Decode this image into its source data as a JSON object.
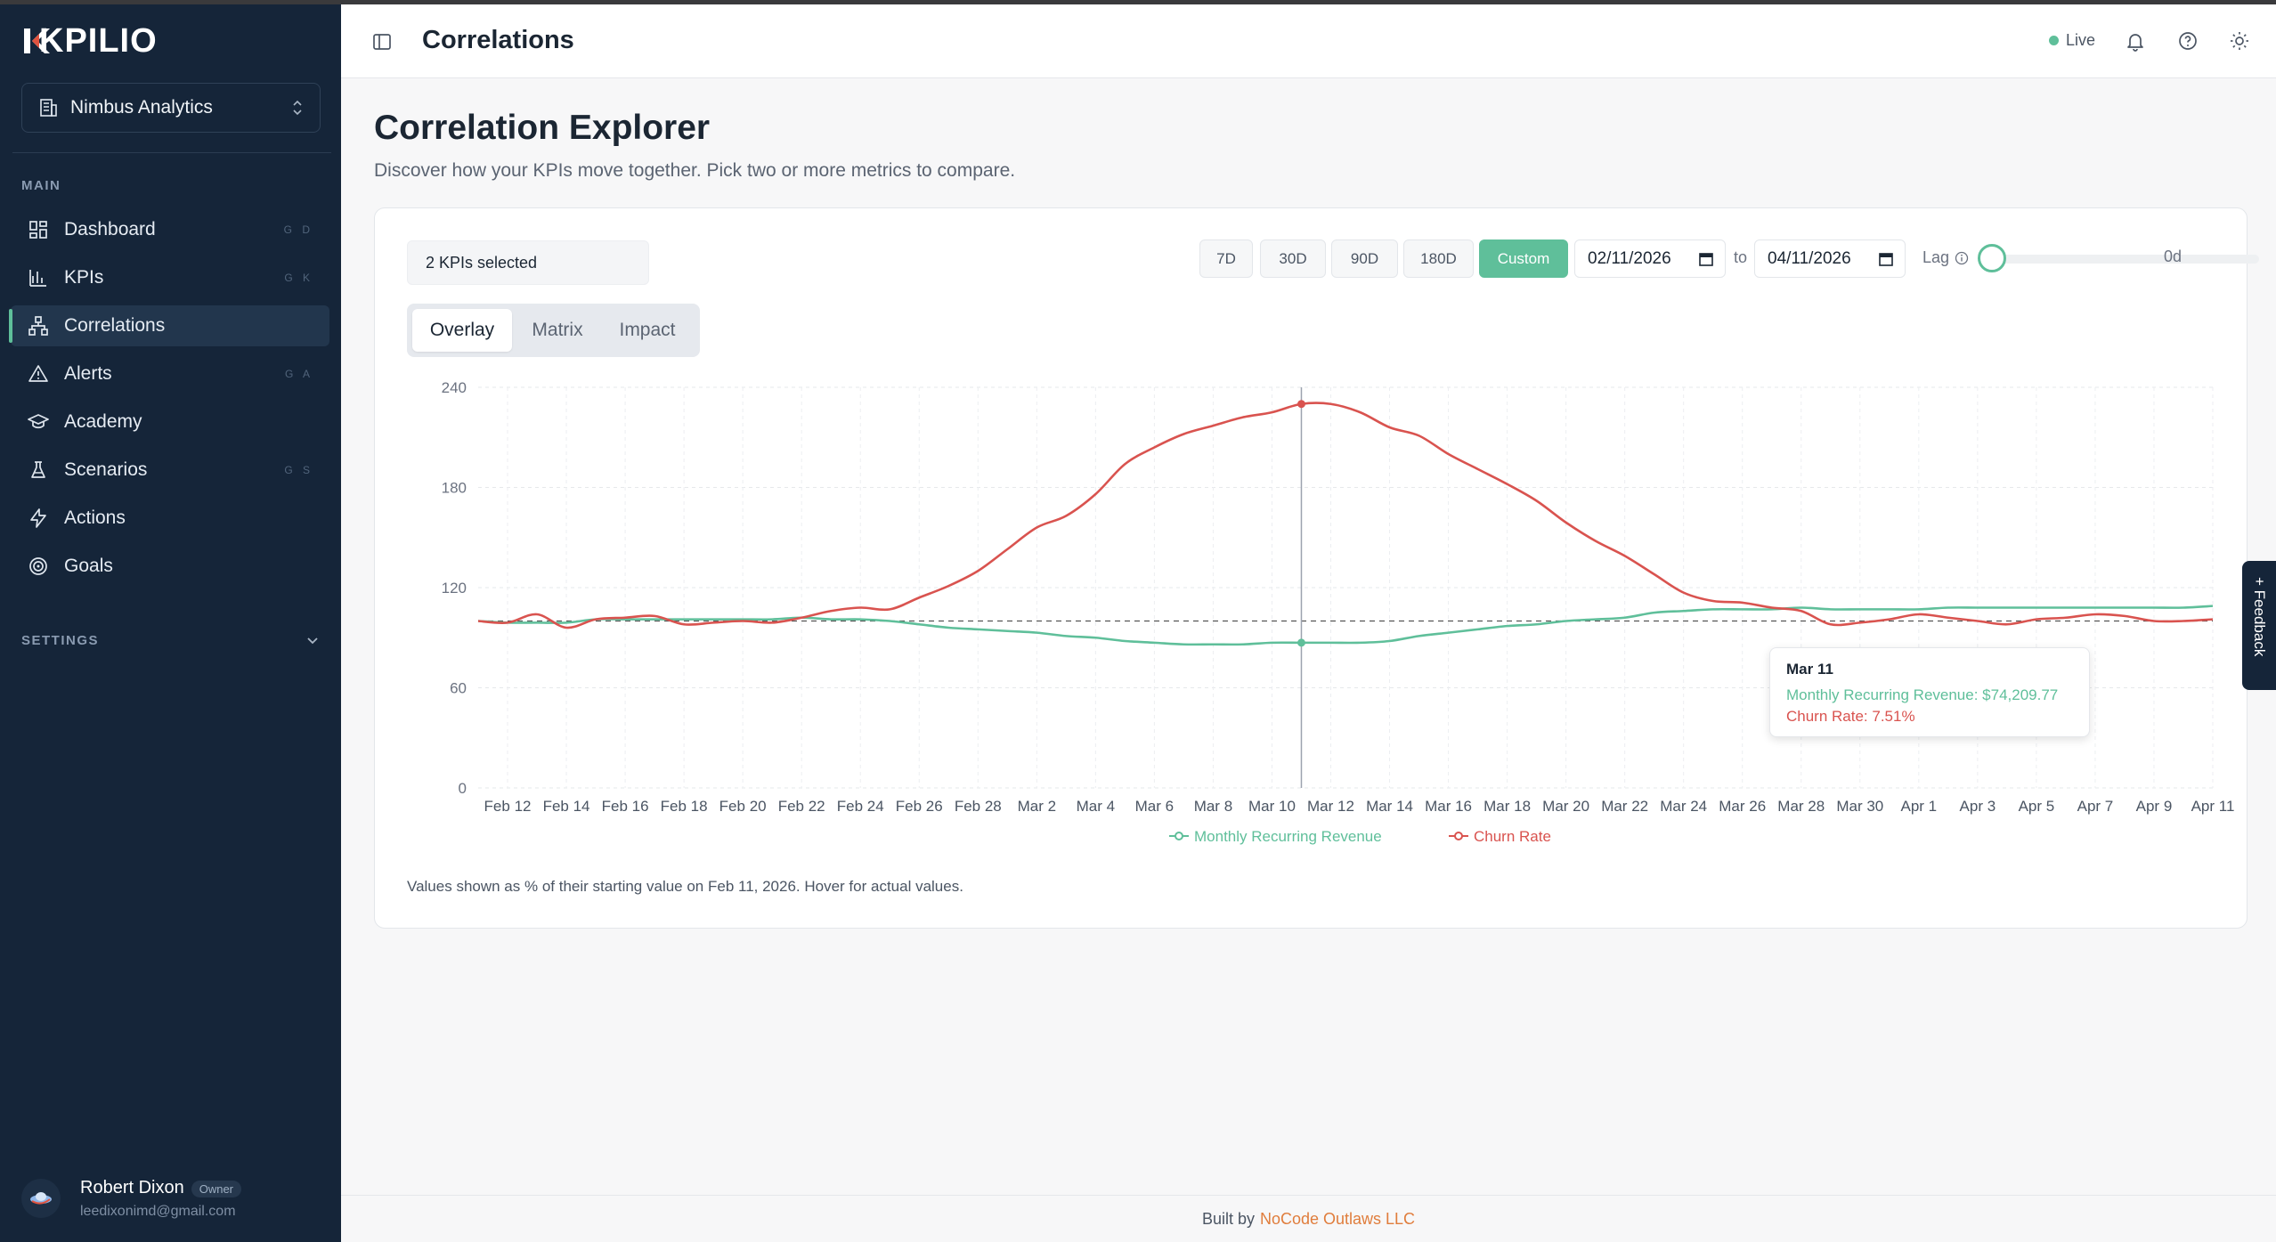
{
  "app": {
    "logo_text": "KPILIO",
    "org_name": "Nimbus Analytics"
  },
  "sidebar": {
    "main_label": "MAIN",
    "items": [
      {
        "label": "Dashboard",
        "kbd": "G D"
      },
      {
        "label": "KPIs",
        "kbd": "G K"
      },
      {
        "label": "Correlations",
        "kbd": ""
      },
      {
        "label": "Alerts",
        "kbd": "G A"
      },
      {
        "label": "Academy",
        "kbd": ""
      },
      {
        "label": "Scenarios",
        "kbd": "G S"
      },
      {
        "label": "Actions",
        "kbd": ""
      },
      {
        "label": "Goals",
        "kbd": ""
      }
    ],
    "settings_label": "SETTINGS",
    "user": {
      "name": "Robert Dixon",
      "role": "Owner",
      "email": "leedixonimd@gmail.com"
    }
  },
  "header": {
    "title": "Correlations",
    "live_label": "Live"
  },
  "main": {
    "title": "Correlation Explorer",
    "subtitle": "Discover how your KPIs move together. Pick two or more metrics to compare.",
    "kpi_select": "2 KPIs selected",
    "ranges": [
      "7D",
      "30D",
      "90D",
      "180D",
      "Custom"
    ],
    "active_range": "Custom",
    "date_from": "02/11/2026",
    "to_label": "to",
    "date_to": "04/11/2026",
    "lag_label": "Lag",
    "lag_value": "0d",
    "tabs": [
      "Overlay",
      "Matrix",
      "Impact"
    ],
    "active_tab": "Overlay",
    "note": "Values shown as % of their starting value on Feb 11, 2026. Hover for actual values."
  },
  "tooltip": {
    "date": "Mar 11",
    "mrr_line": "Monthly Recurring Revenue: $74,209.77",
    "churn_line": "Churn Rate: 7.51%"
  },
  "feedback_label": "Feedback",
  "footer": {
    "prefix": "Built by",
    "brand": "NoCode Outlaws LLC"
  },
  "colors": {
    "accent": "#5fbf9a",
    "mrr": "#5fbf9a",
    "churn": "#d9534f",
    "sidebar_bg": "#152539"
  },
  "chart_data": {
    "type": "line",
    "ylim": [
      0,
      240
    ],
    "yticks": [
      0,
      60,
      120,
      180,
      240
    ],
    "baseline": 100,
    "x_start": "2026-02-11",
    "x_end": "2026-04-11",
    "xticks": [
      "Feb 12",
      "Feb 14",
      "Feb 16",
      "Feb 18",
      "Feb 20",
      "Feb 22",
      "Feb 24",
      "Feb 26",
      "Feb 28",
      "Mar 2",
      "Mar 4",
      "Mar 6",
      "Mar 8",
      "Mar 10",
      "Mar 12",
      "Mar 14",
      "Mar 16",
      "Mar 18",
      "Mar 20",
      "Mar 22",
      "Mar 24",
      "Mar 26",
      "Mar 28",
      "Mar 30",
      "Apr 1",
      "Apr 3",
      "Apr 5",
      "Apr 7",
      "Apr 9",
      "Apr 11"
    ],
    "hover_date": "Mar 11",
    "legend": "bottom-center",
    "series": [
      {
        "name": "Monthly Recurring Revenue",
        "color": "#5fbf9a",
        "values": [
          100,
          99,
          99,
          99,
          101,
          101,
          101,
          101,
          101,
          101,
          101,
          102,
          101,
          101,
          100,
          98,
          96,
          95,
          94,
          93,
          91,
          90,
          88,
          87,
          86,
          86,
          86,
          87,
          87,
          87,
          87,
          88,
          91,
          93,
          95,
          97,
          98,
          100,
          101,
          102,
          105,
          106,
          107,
          107,
          107,
          108,
          107,
          107,
          107,
          107,
          108,
          108,
          108,
          108,
          108,
          108,
          108,
          108,
          108,
          109
        ]
      },
      {
        "name": "Churn Rate",
        "color": "#d9534f",
        "values": [
          100,
          99,
          104,
          96,
          101,
          102,
          103,
          98,
          99,
          100,
          99,
          102,
          106,
          108,
          107,
          114,
          121,
          130,
          143,
          156,
          163,
          176,
          194,
          204,
          212,
          217,
          222,
          225,
          230,
          230,
          225,
          216,
          211,
          200,
          191,
          182,
          172,
          159,
          148,
          139,
          128,
          117,
          112,
          111,
          108,
          106,
          98,
          99,
          101,
          104,
          102,
          100,
          98,
          101,
          102,
          104,
          103,
          100,
          100,
          101
        ]
      }
    ]
  }
}
